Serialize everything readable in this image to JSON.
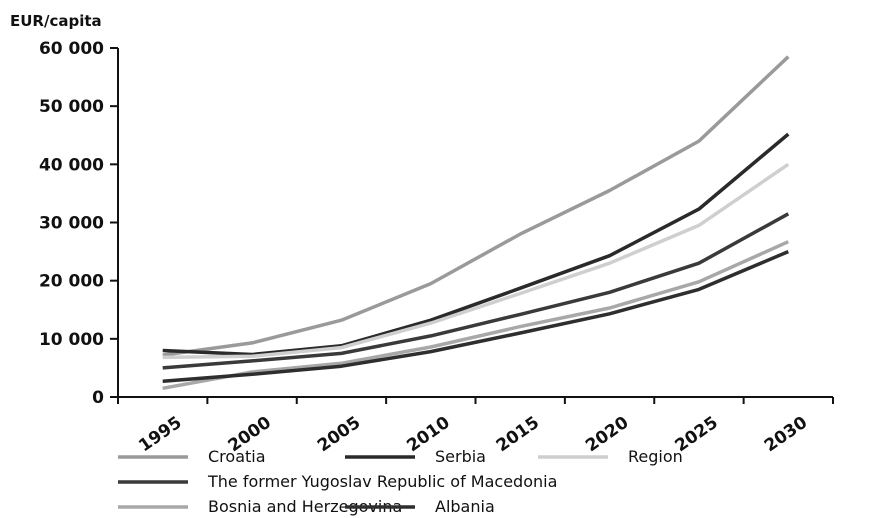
{
  "chart_data": {
    "type": "line",
    "title": "",
    "xlabel": "",
    "ylabel": "EUR/capita",
    "x": [
      "1995",
      "2000",
      "2005",
      "2010",
      "2015",
      "2020",
      "2025",
      "2030"
    ],
    "ylim": [
      0,
      60000
    ],
    "yticks": [
      0,
      10000,
      20000,
      30000,
      40000,
      50000,
      60000
    ],
    "ytick_labels": [
      "0",
      "10 000",
      "20 000",
      "30 000",
      "40 000",
      "50 000",
      "60 000"
    ],
    "grid": false,
    "legend_position": "bottom",
    "series": [
      {
        "name": "Croatia",
        "color": "#9a9a9a",
        "values": [
          7200,
          9300,
          13200,
          19500,
          28000,
          35500,
          44000,
          58500
        ]
      },
      {
        "name": "Serbia",
        "color": "#2a2a2a",
        "values": [
          8000,
          7300,
          8800,
          13200,
          18700,
          24300,
          32300,
          45200
        ]
      },
      {
        "name": "Region",
        "color": "#cfcfcf",
        "values": [
          6800,
          7000,
          8500,
          12700,
          17800,
          23000,
          29500,
          40000
        ]
      },
      {
        "name": "The former Yugoslav Republic of Macedonia",
        "color": "#3a3a3a",
        "values": [
          5000,
          6200,
          7500,
          10500,
          14200,
          18000,
          23000,
          31500
        ]
      },
      {
        "name": "Bosnia and Herzegovina",
        "color": "#a8a8a8",
        "values": [
          1500,
          4300,
          5800,
          8600,
          12100,
          15300,
          19800,
          26700
        ]
      },
      {
        "name": "Albania",
        "color": "#2e2e2e",
        "values": [
          2700,
          3900,
          5300,
          7800,
          11000,
          14300,
          18500,
          25000
        ]
      }
    ]
  }
}
